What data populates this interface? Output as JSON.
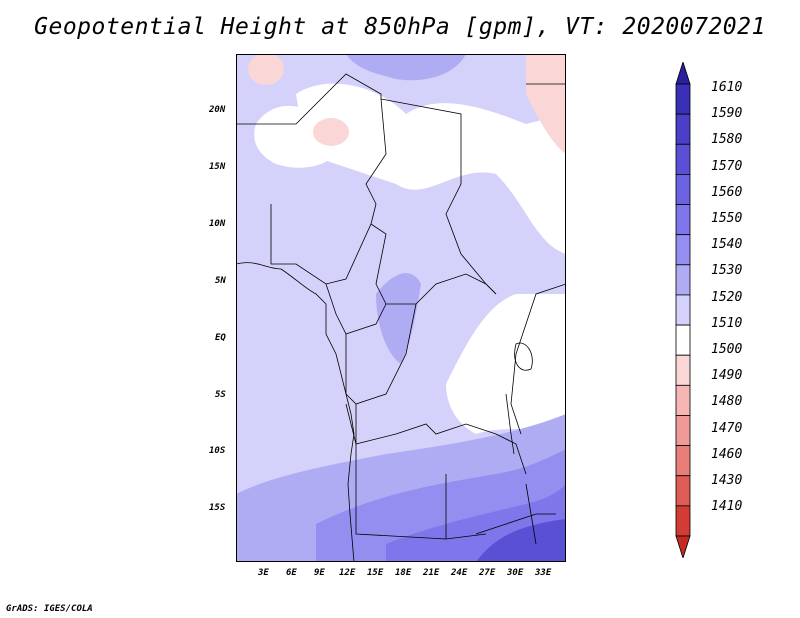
{
  "title": "Geopotential Height at 850hPa [gpm], VT: 2020072021",
  "credit": "GrADS: IGES/COLA",
  "y_ticks": [
    "20N",
    "15N",
    "10N",
    "5N",
    "EQ",
    "5S",
    "10S",
    "15S"
  ],
  "x_ticks": [
    "3E",
    "6E",
    "9E",
    "12E",
    "15E",
    "18E",
    "21E",
    "24E",
    "27E",
    "30E",
    "33E"
  ],
  "legend": {
    "labels": [
      "1610",
      "1590",
      "1580",
      "1570",
      "1560",
      "1550",
      "1540",
      "1530",
      "1520",
      "1510",
      "1500",
      "1490",
      "1480",
      "1470",
      "1460",
      "1430",
      "1410"
    ],
    "colors": [
      "#2a1fa0",
      "#3a30b8",
      "#4a40c8",
      "#5a50d6",
      "#6a62e0",
      "#7e76ea",
      "#948ef0",
      "#b0acf4",
      "#d4d2fa",
      "#ffffff",
      "#fbd6d6",
      "#f5b6b4",
      "#ef9a98",
      "#e77e7a",
      "#df5c56",
      "#d33c34",
      "#c42a22"
    ]
  },
  "colors": {
    "base": "#d8d8fa",
    "high": "#6a62e0",
    "higher": "#3a30b8",
    "warm": "#fbd6d6",
    "border": "#000000"
  }
}
